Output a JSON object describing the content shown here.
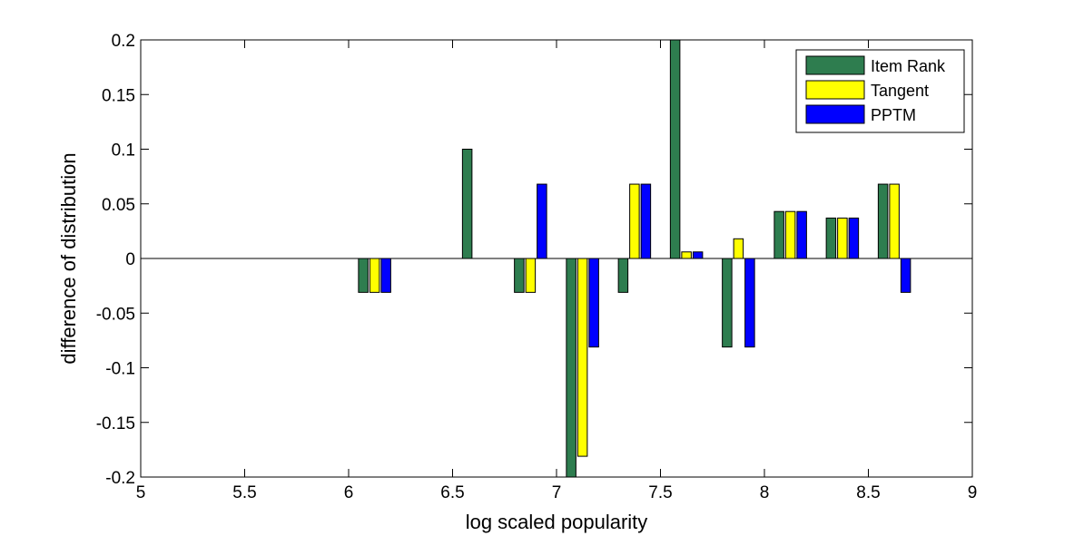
{
  "chart_data": {
    "type": "bar",
    "title": "",
    "xlabel": "log scaled popularity",
    "ylabel": "difference of distribution",
    "xlim": [
      5,
      9
    ],
    "ylim": [
      -0.2,
      0.2
    ],
    "xticks": [
      "5",
      "5.5",
      "6",
      "6.5",
      "7",
      "7.5",
      "8",
      "8.5",
      "9"
    ],
    "yticks": [
      "0.2",
      "0.15",
      "0.1",
      "0.05",
      "0",
      "-0.05",
      "-0.1",
      "-0.15",
      "-0.2"
    ],
    "x": [
      6.125,
      6.625,
      6.875,
      7.125,
      7.375,
      7.625,
      7.875,
      8.125,
      8.375,
      8.625
    ],
    "series": [
      {
        "name": "Item Rank",
        "color": "#2e7d4f",
        "values": [
          -0.031,
          0.1,
          -0.031,
          -0.21,
          -0.031,
          0.2,
          -0.081,
          0.043,
          0.037,
          0.068
        ]
      },
      {
        "name": "Tangent",
        "color": "#ffff00",
        "values": [
          -0.031,
          0,
          -0.031,
          -0.181,
          0.068,
          0.006,
          0.018,
          0.043,
          0.037,
          0.068
        ]
      },
      {
        "name": "PPTM",
        "color": "#0000ff",
        "values": [
          -0.031,
          0,
          0.068,
          -0.081,
          0.068,
          0.006,
          -0.081,
          0.043,
          0.037,
          -0.031
        ]
      }
    ],
    "grid": false,
    "legend_position": "top-right"
  }
}
